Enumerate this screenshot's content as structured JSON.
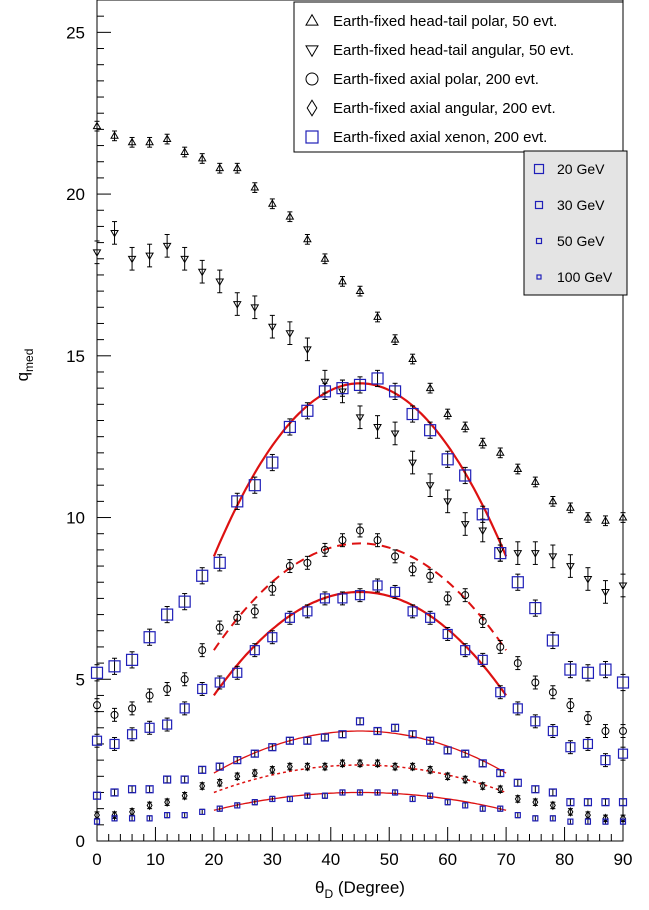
{
  "chart_data": {
    "type": "scatter",
    "title": "",
    "xlabel_main": "θ",
    "xlabel_sub": "D",
    "xlabel_rest": " (Degree)",
    "ylabel_main": "q",
    "ylabel_sub": "med",
    "xlim": [
      0,
      90
    ],
    "ylim": [
      0,
      26
    ],
    "xticks": [
      0,
      10,
      20,
      30,
      40,
      50,
      60,
      70,
      80,
      90
    ],
    "yticks": [
      0,
      5,
      10,
      15,
      20,
      25
    ],
    "x": [
      0,
      3,
      6,
      9,
      12,
      15,
      18,
      21,
      24,
      27,
      30,
      33,
      36,
      39,
      42,
      45,
      48,
      51,
      54,
      57,
      60,
      63,
      66,
      69,
      72,
      75,
      78,
      81,
      84,
      87,
      90
    ],
    "legend_main": {
      "placement": "top-right",
      "entries": [
        {
          "marker": "triangle-up",
          "label": "Earth-fixed head-tail polar, 50 evt."
        },
        {
          "marker": "triangle-down",
          "label": "Earth-fixed head-tail angular, 50 evt."
        },
        {
          "marker": "circle",
          "label": "Earth-fixed axial polar, 200 evt."
        },
        {
          "marker": "diamond",
          "label": "Earth-fixed axial angular, 200 evt."
        },
        {
          "marker": "square-blue",
          "label": "Earth-fixed axial xenon, 200 evt."
        }
      ]
    },
    "legend_mass": {
      "placement": "top-right",
      "entries": [
        {
          "marker": "square-blue",
          "size": 9,
          "label": "20 GeV"
        },
        {
          "marker": "square-blue",
          "size": 7,
          "label": "30 GeV"
        },
        {
          "marker": "square-blue",
          "size": 5,
          "label": "50 GeV"
        },
        {
          "marker": "square-blue",
          "size": 4,
          "label": "100 GeV"
        }
      ]
    },
    "series": [
      {
        "marker": "triangle-up",
        "color": "#000000",
        "size": 7,
        "err": 0.15,
        "values": [
          22.1,
          21.8,
          21.6,
          21.6,
          21.7,
          21.3,
          21.1,
          20.8,
          20.8,
          20.2,
          19.7,
          19.3,
          18.6,
          18.0,
          17.3,
          17.0,
          16.2,
          15.5,
          14.9,
          14.0,
          13.2,
          12.8,
          12.3,
          12.0,
          11.5,
          11.1,
          10.5,
          10.3,
          10.0,
          9.9,
          10.0
        ]
      },
      {
        "marker": "triangle-down",
        "color": "#000000",
        "size": 7,
        "err": 0.35,
        "values": [
          18.2,
          18.8,
          18.0,
          18.1,
          18.4,
          18.0,
          17.6,
          17.3,
          16.6,
          16.5,
          15.9,
          15.7,
          15.2,
          14.2,
          13.9,
          13.1,
          12.8,
          12.6,
          11.7,
          11.0,
          10.5,
          9.8,
          9.6,
          9.0,
          8.9,
          8.9,
          8.8,
          8.5,
          8.1,
          7.7,
          7.9
        ]
      },
      {
        "marker": "circle",
        "color": "#000000",
        "size": 7,
        "err": 0.2,
        "values": [
          4.2,
          3.9,
          4.1,
          4.5,
          4.7,
          5.0,
          5.9,
          6.6,
          6.9,
          7.1,
          7.8,
          8.5,
          8.6,
          9.0,
          9.3,
          9.6,
          9.3,
          8.8,
          8.4,
          8.2,
          7.5,
          7.6,
          6.8,
          6.0,
          5.5,
          4.9,
          4.6,
          4.2,
          3.8,
          3.4,
          3.4
        ]
      },
      {
        "marker": "diamond",
        "color": "#000000",
        "size": 6,
        "err": 0.1,
        "values": [
          0.8,
          0.8,
          0.9,
          1.1,
          1.2,
          1.4,
          1.7,
          1.8,
          2.0,
          2.1,
          2.2,
          2.3,
          2.3,
          2.3,
          2.4,
          2.4,
          2.4,
          2.3,
          2.3,
          2.2,
          2.0,
          1.9,
          1.7,
          1.6,
          1.3,
          1.2,
          1.1,
          0.9,
          0.8,
          0.7,
          0.7
        ]
      },
      {
        "marker": "square-blue",
        "color": "#1f1fb8",
        "size": 11,
        "err": 0.25,
        "values": [
          5.2,
          5.4,
          5.6,
          6.3,
          7.0,
          7.4,
          8.2,
          8.6,
          10.5,
          11.0,
          11.7,
          12.8,
          13.3,
          13.9,
          14.0,
          14.1,
          14.3,
          13.9,
          13.2,
          12.7,
          11.8,
          11.3,
          10.1,
          8.9,
          8.0,
          7.2,
          6.2,
          5.3,
          5.2,
          5.3,
          4.9
        ]
      },
      {
        "marker": "square-blue",
        "color": "#1f1fb8",
        "size": 9,
        "err": 0.2,
        "values": [
          3.1,
          3.0,
          3.3,
          3.5,
          3.6,
          4.1,
          4.7,
          4.9,
          5.2,
          5.9,
          6.3,
          6.9,
          7.1,
          7.5,
          7.5,
          7.6,
          7.9,
          7.7,
          7.1,
          6.9,
          6.4,
          5.9,
          5.6,
          4.6,
          4.1,
          3.7,
          3.4,
          2.9,
          3.0,
          2.5,
          2.7
        ]
      },
      {
        "marker": "square-blue",
        "color": "#1f1fb8",
        "size": 7,
        "err": 0.1,
        "values": [
          1.4,
          1.5,
          1.6,
          1.6,
          1.9,
          1.9,
          2.2,
          2.3,
          2.5,
          2.7,
          2.9,
          3.1,
          3.1,
          3.2,
          3.3,
          3.7,
          3.4,
          3.5,
          3.3,
          3.1,
          2.8,
          2.7,
          2.4,
          2.1,
          1.8,
          1.6,
          1.5,
          1.2,
          1.2,
          1.2,
          1.2
        ]
      },
      {
        "marker": "square-blue",
        "color": "#1f1fb8",
        "size": 5,
        "err": 0.08,
        "values": [
          0.6,
          0.7,
          0.7,
          0.7,
          0.8,
          0.8,
          0.9,
          1.0,
          1.1,
          1.2,
          1.3,
          1.3,
          1.4,
          1.4,
          1.5,
          1.5,
          1.5,
          1.5,
          1.3,
          1.4,
          1.2,
          1.1,
          1.0,
          1.0,
          0.8,
          0.7,
          0.7,
          0.6,
          0.6,
          0.6,
          0.6
        ]
      }
    ],
    "fits": [
      {
        "style": "solid",
        "color": "#dd1111",
        "width": 2.2,
        "x0": 20,
        "x1": 70,
        "peak_x": 45,
        "peak_y": 14.15,
        "edge_y": 8.8
      },
      {
        "style": "dashed",
        "color": "#dd1111",
        "width": 2,
        "x0": 20,
        "x1": 70,
        "peak_x": 45,
        "peak_y": 9.2,
        "edge_y": 5.9
      },
      {
        "style": "solid",
        "color": "#dd1111",
        "width": 2.2,
        "x0": 20,
        "x1": 70,
        "peak_x": 45,
        "peak_y": 7.7,
        "edge_y": 4.5
      },
      {
        "style": "solid",
        "color": "#dd1111",
        "width": 1.3,
        "x0": 20,
        "x1": 70,
        "peak_x": 45,
        "peak_y": 3.4,
        "edge_y": 2.1
      },
      {
        "style": "dotted",
        "color": "#dd1111",
        "width": 1.5,
        "x0": 20,
        "x1": 70,
        "peak_x": 45,
        "peak_y": 2.35,
        "edge_y": 1.5
      },
      {
        "style": "solid",
        "color": "#dd1111",
        "width": 1.3,
        "x0": 20,
        "x1": 70,
        "peak_x": 45,
        "peak_y": 1.5,
        "edge_y": 0.95
      }
    ]
  }
}
